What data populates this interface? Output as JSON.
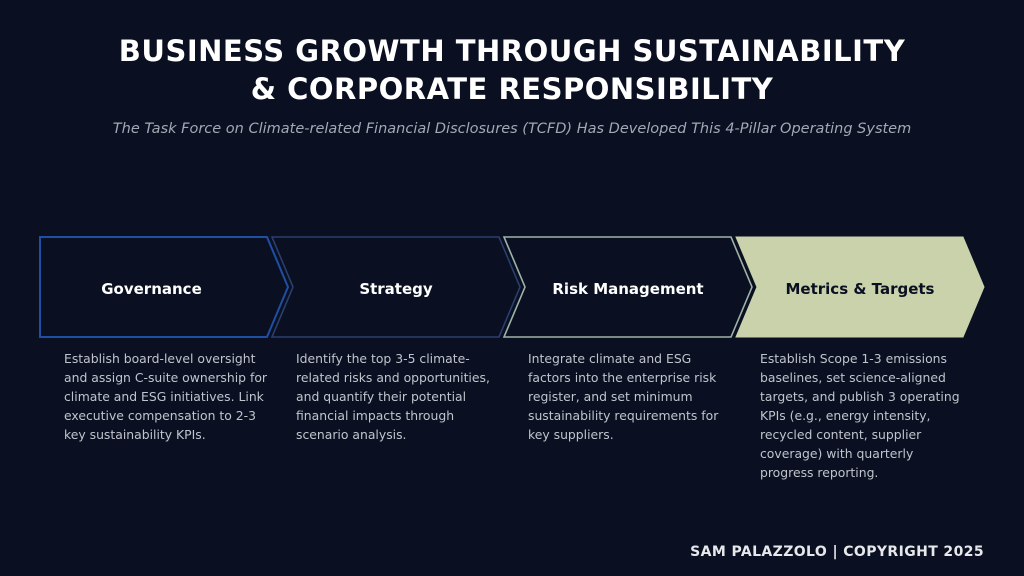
{
  "header": {
    "title_line1": "BUSINESS GROWTH THROUGH SUSTAINABILITY",
    "title_line2": "& CORPORATE RESPONSIBILITY",
    "subtitle": "The Task Force on Climate-related Financial Disclosures (TCFD) Has Developed This 4-Pillar Operating System"
  },
  "pillars": [
    {
      "label": "Governance",
      "description": "Establish board-level oversight and assign C-suite ownership for climate and ESG initiatives. Link executive compensation to 2-3 key sustainability KPIs.",
      "border_color": "#1f4fa3"
    },
    {
      "label": "Strategy",
      "description": "Identify the top 3-5 climate-related risks and opportunities, and quantify their potential financial impacts through scenario analysis.",
      "border_color": "#2a3f6e"
    },
    {
      "label": "Risk Management",
      "description": "Integrate climate and ESG factors into the enterprise risk register, and set minimum sustainability requirements for key suppliers.",
      "border_color": "#9fb3a8"
    },
    {
      "label": "Metrics & Targets",
      "description": "Establish Scope 1-3 emissions baselines, set science-aligned targets, and publish 3 operating KPIs (e.g., energy intensity, recycled content, supplier coverage) with quarterly progress reporting.",
      "fill_color": "#c9d2aa",
      "text_color": "#0a1021"
    }
  ],
  "footer": {
    "copyright": "SAM PALAZZOLO | COPYRIGHT 2025"
  },
  "colors": {
    "background": "#0a1021",
    "chevron_fill": "#0a1021"
  }
}
